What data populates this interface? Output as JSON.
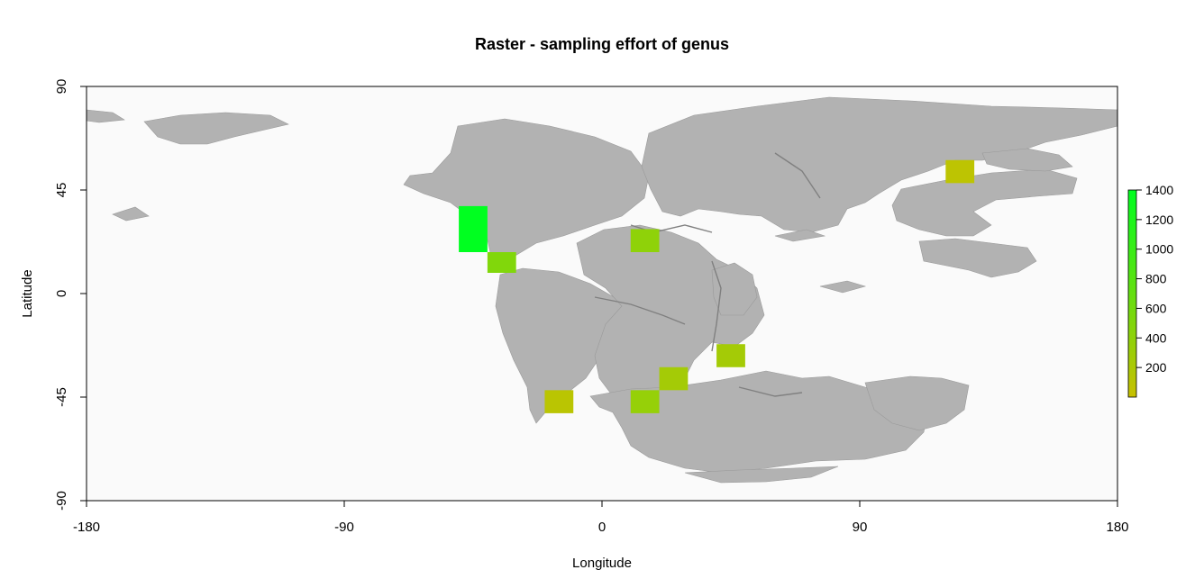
{
  "chart_data": {
    "type": "heatmap",
    "title": "Raster - sampling effort of  genus",
    "xlabel": "Longitude",
    "ylabel": "Latitude",
    "xlim": [
      -180,
      180
    ],
    "ylim": [
      -90,
      90
    ],
    "x_ticks": [
      "-180",
      "-90",
      "0",
      "90",
      "180"
    ],
    "y_ticks": [
      "-90",
      "-45",
      "0",
      "45",
      "90"
    ],
    "cell_size_deg": [
      10,
      10
    ],
    "cells": [
      {
        "lon_min": -50,
        "lon_max": -40,
        "lat_min": 18,
        "lat_max": 38,
        "value": 1400
      },
      {
        "lon_min": -40,
        "lon_max": -30,
        "lat_min": 9,
        "lat_max": 18,
        "value": 500
      },
      {
        "lon_min": 10,
        "lon_max": 20,
        "lat_min": 18,
        "lat_max": 28,
        "value": 400
      },
      {
        "lon_min": 120,
        "lon_max": 130,
        "lat_min": 48,
        "lat_max": 58,
        "value": 80
      },
      {
        "lon_min": 40,
        "lon_max": 50,
        "lat_min": -32,
        "lat_max": -22,
        "value": 250
      },
      {
        "lon_min": 20,
        "lon_max": 30,
        "lat_min": -42,
        "lat_max": -32,
        "value": 250
      },
      {
        "lon_min": 10,
        "lon_max": 20,
        "lat_min": -52,
        "lat_max": -42,
        "value": 350
      },
      {
        "lon_min": -20,
        "lon_max": -10,
        "lat_min": -52,
        "lat_max": -42,
        "value": 100
      }
    ],
    "legend": {
      "position": "right",
      "min": 0,
      "max": 1400,
      "ticks": [
        "200",
        "400",
        "600",
        "800",
        "1000",
        "1200",
        "1400"
      ],
      "low_color": "#c8c000",
      "high_color": "#00ff20"
    },
    "colors": {
      "panel_background": "#fafafa",
      "land": "#b2b2b2",
      "land_border": "#888888"
    }
  }
}
